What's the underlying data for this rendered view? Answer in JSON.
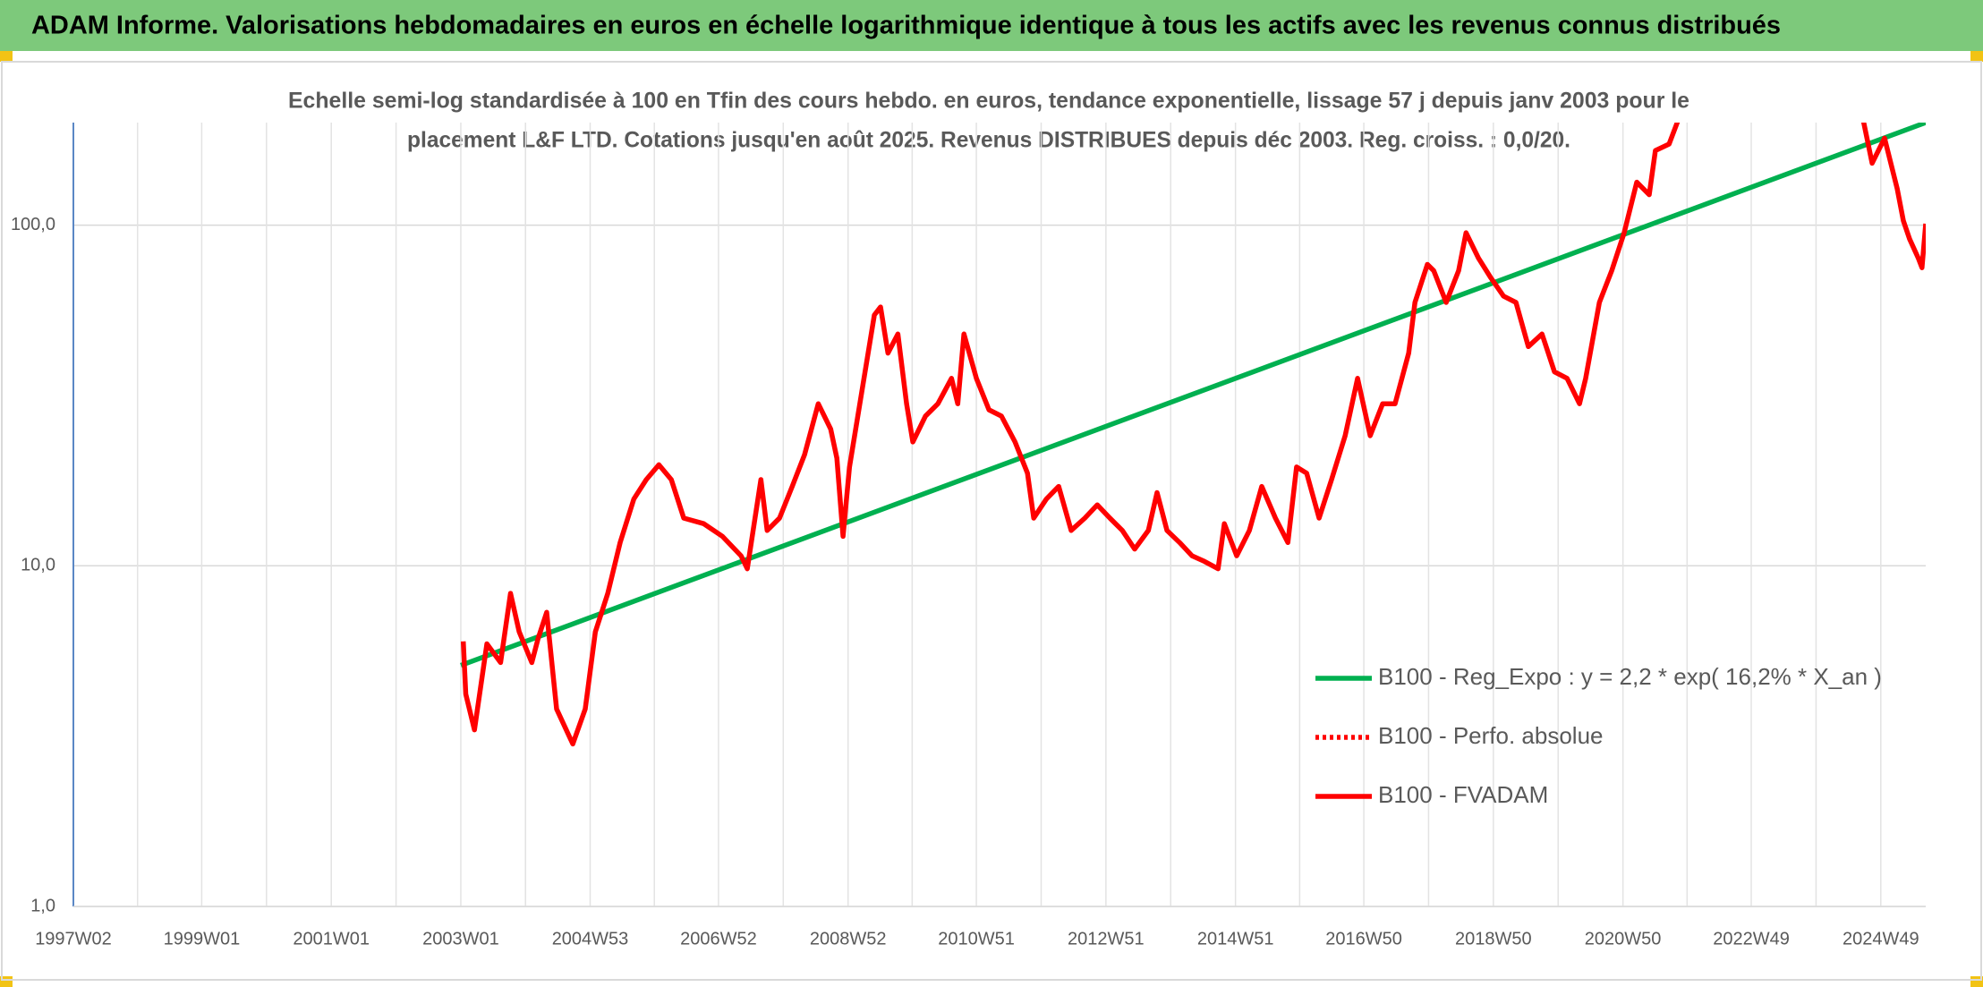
{
  "header": {
    "title": "ADAM Informe. Valorisations hebdomadaires en euros en échelle logarithmique identique à tous les actifs avec les revenus connus distribués"
  },
  "chart_data": {
    "type": "line",
    "subtitle": [
      "Echelle semi-log standardisée à 100 en Tfin des cours hebdo. en euros, tendance exponentielle, lissage 57 j depuis janv 2003 pour le",
      "placement L&F LTD. Cotations jusqu'en août 2025. Revenus DISTRIBUES depuis déc 2003. Reg. croiss. : 0,0/20."
    ],
    "log_scale": true,
    "grid": true,
    "legend": "right",
    "ylim": [
      1,
      200
    ],
    "yticks": [
      {
        "value": 1,
        "label": "1,0"
      },
      {
        "value": 10,
        "label": "10,0"
      },
      {
        "value": 100,
        "label": "100,0"
      }
    ],
    "xlim": [
      "1997W02",
      "2025W33"
    ],
    "xticks": [
      "1997W02",
      "1999W01",
      "2001W01",
      "2003W01",
      "2004W53",
      "2006W52",
      "2008W52",
      "2010W51",
      "2012W51",
      "2014W51",
      "2016W50",
      "2018W50",
      "2020W50",
      "2022W49",
      "2024W49"
    ],
    "series": [
      {
        "name": "B100 - Reg_Expo : y = 2,2 * exp( 16,2% *  X_an )",
        "color": "#00b050",
        "style": "solid",
        "x": [
          "2003W01",
          "2025W33"
        ],
        "values": [
          5.1,
          200
        ]
      },
      {
        "name": "B100 - Perfo. absolue",
        "color": "#ff0000",
        "style": "dotted",
        "x": [],
        "values": []
      },
      {
        "name": "B100 - FVADAM",
        "color": "#ff0000",
        "style": "solid",
        "x": [
          "2003W03",
          "2003W05",
          "2003W12",
          "2003W22",
          "2003W33",
          "2003W41",
          "2003W48",
          "2004W06",
          "2004W11",
          "2004W18",
          "2004W26",
          "2004W39",
          "2004W49",
          "2005W05",
          "2005W15",
          "2005W25",
          "2005W36",
          "2005W46",
          "2006W04",
          "2006W14",
          "2006W24",
          "2006W40",
          "2007W03",
          "2007W18",
          "2007W23",
          "2007W34",
          "2007W39",
          "2007W49",
          "2008W07",
          "2008W17",
          "2008W28",
          "2008W38",
          "2008W43",
          "2008W48",
          "2009W01",
          "2009W11",
          "2009W21",
          "2009W26",
          "2009W32",
          "2009W40",
          "2009W47",
          "2009W52",
          "2010W10",
          "2010W20",
          "2010W31",
          "2010W36",
          "2010W41",
          "2010W51",
          "2011W09",
          "2011W19",
          "2011W30",
          "2011W40",
          "2011W45",
          "2012W03",
          "2012W13",
          "2012W23",
          "2012W34",
          "2012W44",
          "2013W02",
          "2013W12",
          "2013W22",
          "2013W33",
          "2013W40",
          "2013W48",
          "2014W06",
          "2014W16",
          "2014W26",
          "2014W37",
          "2014W42",
          "2014W52",
          "2015W10",
          "2015W20",
          "2015W31",
          "2015W41",
          "2015W48",
          "2016W04",
          "2016W14",
          "2016W24",
          "2016W35",
          "2016W45",
          "2017W03",
          "2017W13",
          "2017W23",
          "2017W34",
          "2017W39",
          "2017W49",
          "2018W02",
          "2018W12",
          "2018W22",
          "2018W28",
          "2018W38",
          "2018W48",
          "2019W06",
          "2019W16",
          "2019W26",
          "2019W37",
          "2019W47",
          "2020W05",
          "2020W15",
          "2020W20",
          "2020W31",
          "2020W41",
          "2020W51",
          "2021W09",
          "2021W19",
          "2021W24",
          "2021W35",
          "2021W42",
          "2023W01",
          "2024W35",
          "2024W42",
          "2024W52",
          "2025W10",
          "2025W15",
          "2025W20",
          "2025W27",
          "2025W30",
          "2025W33"
        ],
        "values": [
          6.0,
          4.2,
          3.3,
          5.9,
          5.2,
          8.3,
          6.4,
          5.2,
          6.1,
          7.3,
          3.8,
          3.0,
          3.8,
          6.4,
          8.3,
          11.7,
          15.7,
          17.9,
          19.8,
          17.9,
          13.8,
          13.3,
          12.2,
          10.7,
          9.8,
          17.9,
          12.7,
          13.8,
          17.1,
          21.2,
          29.9,
          25.2,
          20.7,
          12.2,
          19.5,
          32.6,
          54.5,
          57.5,
          42.1,
          47.9,
          29.9,
          23.1,
          27.5,
          29.9,
          35.5,
          29.9,
          47.9,
          35.5,
          28.7,
          27.5,
          23.1,
          18.7,
          13.8,
          15.7,
          17.1,
          12.7,
          13.8,
          15.1,
          13.8,
          12.7,
          11.2,
          12.7,
          16.4,
          12.7,
          11.7,
          10.7,
          10.3,
          9.8,
          13.3,
          10.7,
          12.7,
          17.1,
          13.8,
          11.7,
          19.5,
          18.7,
          13.8,
          17.9,
          24.1,
          35.5,
          24.1,
          29.9,
          29.9,
          42.1,
          59.3,
          76.7,
          73.5,
          59.3,
          73.5,
          95,
          80,
          70,
          61.9,
          59.3,
          44.0,
          47.9,
          37.1,
          35.5,
          29.9,
          35.5,
          59.3,
          73.5,
          95,
          133.7,
          122.8,
          165.6,
          173,
          202,
          null,
          202,
          152,
          180,
          128,
          103,
          91,
          80,
          75,
          101
        ]
      }
    ]
  }
}
